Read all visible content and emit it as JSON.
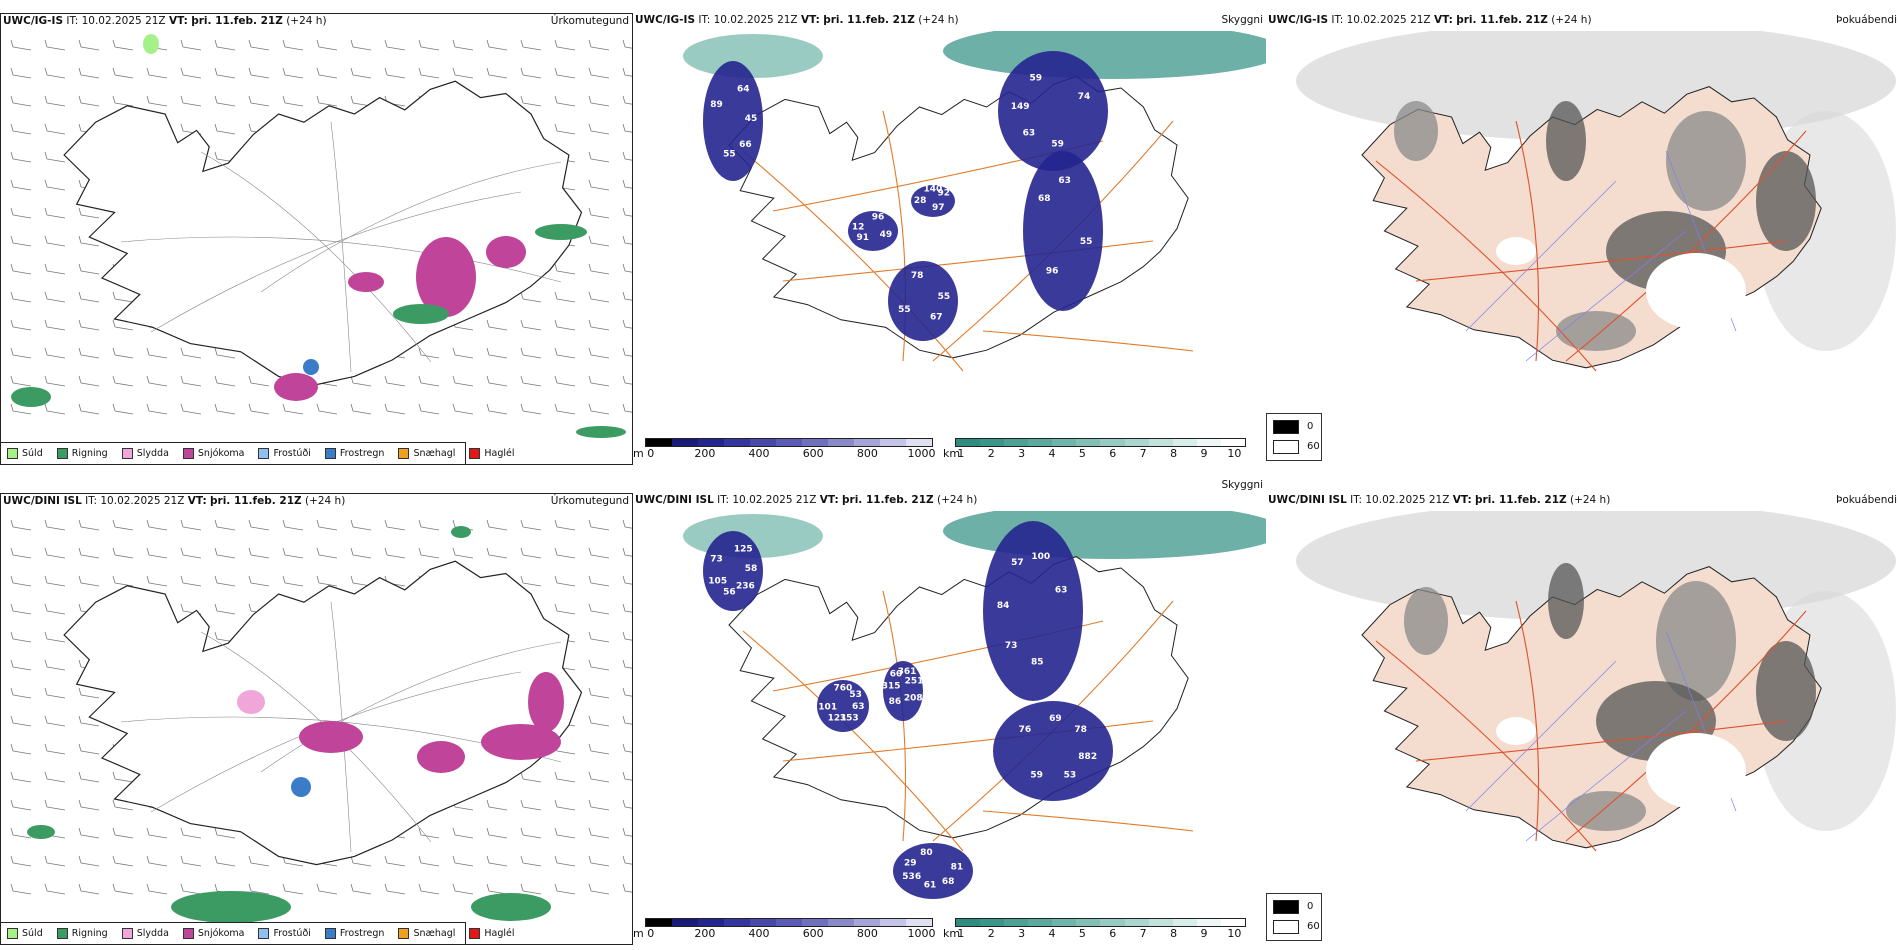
{
  "rows": [
    {
      "model_label": "UWC/IG-IS",
      "precip_panel": {
        "title": "Úrkomutegund"
      },
      "cloud_panel": {
        "title": "Skyggni"
      },
      "cover_panel": {
        "title": "Þokuábendi"
      }
    },
    {
      "model_label": "UWC/DINI ISL",
      "precip_panel": {
        "title": "Úrkomutegund"
      },
      "cloud_panel": {
        "title": "Skyggni"
      },
      "cover_panel": {
        "title": "Þokuábendi"
      }
    }
  ],
  "timing": {
    "it_label": "IT:",
    "it_value": "10.02.2025 21Z",
    "vt_label": "VT:",
    "vt_value": "þri. 11.feb. 21Z",
    "lead": "(+24 h)"
  },
  "precip_legend": [
    {
      "label": "Súld",
      "color": "#a6f08a"
    },
    {
      "label": "Rigning",
      "color": "#3b9b63"
    },
    {
      "label": "Slydda",
      "color": "#f0a6d8"
    },
    {
      "label": "Snjókoma",
      "color": "#c0449a"
    },
    {
      "label": "Frostúði",
      "color": "#8ec0f0"
    },
    {
      "label": "Frostregn",
      "color": "#3a7cc8"
    },
    {
      "label": "Snæhagl",
      "color": "#f0a020"
    },
    {
      "label": "Haglél",
      "color": "#e01818"
    }
  ],
  "cloudbase_scale": {
    "unit": "m",
    "ticks": [
      "0",
      "200",
      "400",
      "600",
      "800",
      "1000"
    ],
    "colors": [
      "#000000",
      "#1a1a7a",
      "#25258f",
      "#3535a0",
      "#4848aa",
      "#5b5bb5",
      "#7070bf",
      "#8a8acb",
      "#a5a5d8",
      "#c4c4e6",
      "#e0e0f2"
    ]
  },
  "visibility_scale": {
    "unit": "km",
    "ticks": [
      "1",
      "2",
      "3",
      "4",
      "5",
      "6",
      "7",
      "8",
      "9",
      "10"
    ],
    "colors": [
      "#2f8a80",
      "#3c9589",
      "#4ca094",
      "#5caa9e",
      "#6fb5aa",
      "#82c0b6",
      "#97cbc2",
      "#abd6cf",
      "#c2e2dc",
      "#d9ede9",
      "#eef7f5",
      "#ffffff"
    ]
  },
  "fog_key": [
    {
      "value": "0",
      "color": "#000000"
    },
    {
      "value": "60",
      "color": "#ffffff"
    }
  ],
  "cloud_numbers_top": [
    "45",
    "63",
    "63",
    "67",
    "12",
    "92",
    "55",
    "59",
    "55",
    "55",
    "96",
    "97",
    "89",
    "74",
    "96",
    "78",
    "49",
    "28",
    "64",
    "59",
    "68",
    "55",
    "91",
    "140",
    "66",
    "149"
  ],
  "cloud_numbers_bottom": [
    "58",
    "73",
    "69",
    "68",
    "315",
    "53",
    "56",
    "57",
    "882",
    "536",
    "361",
    "353",
    "73",
    "63",
    "59",
    "80",
    "208",
    "101",
    "125",
    "85",
    "76",
    "81",
    "86",
    "760",
    "236",
    "84",
    "78",
    "61",
    "60",
    "63",
    "105",
    "100",
    "53",
    "29",
    "251",
    "121"
  ]
}
